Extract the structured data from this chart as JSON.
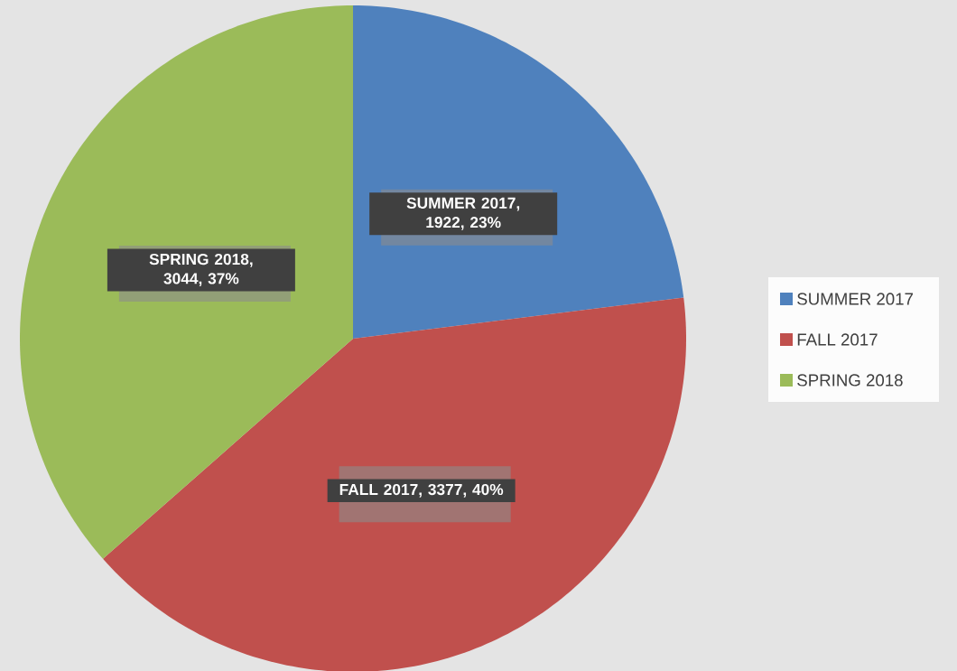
{
  "chart_data": {
    "type": "pie",
    "categories": [
      "SUMMER 2017",
      "FALL 2017",
      "SPRING 2018"
    ],
    "values": [
      1922,
      3377,
      3044
    ],
    "colors": [
      "#4f81bd",
      "#c0504d",
      "#9bbb59"
    ],
    "value_labels": [
      "SUMMER 2017, 1922, 23%",
      "FALL 2017, 3377, 40%",
      "SPRING 2018, 3044, 37%"
    ],
    "legend": "right"
  }
}
